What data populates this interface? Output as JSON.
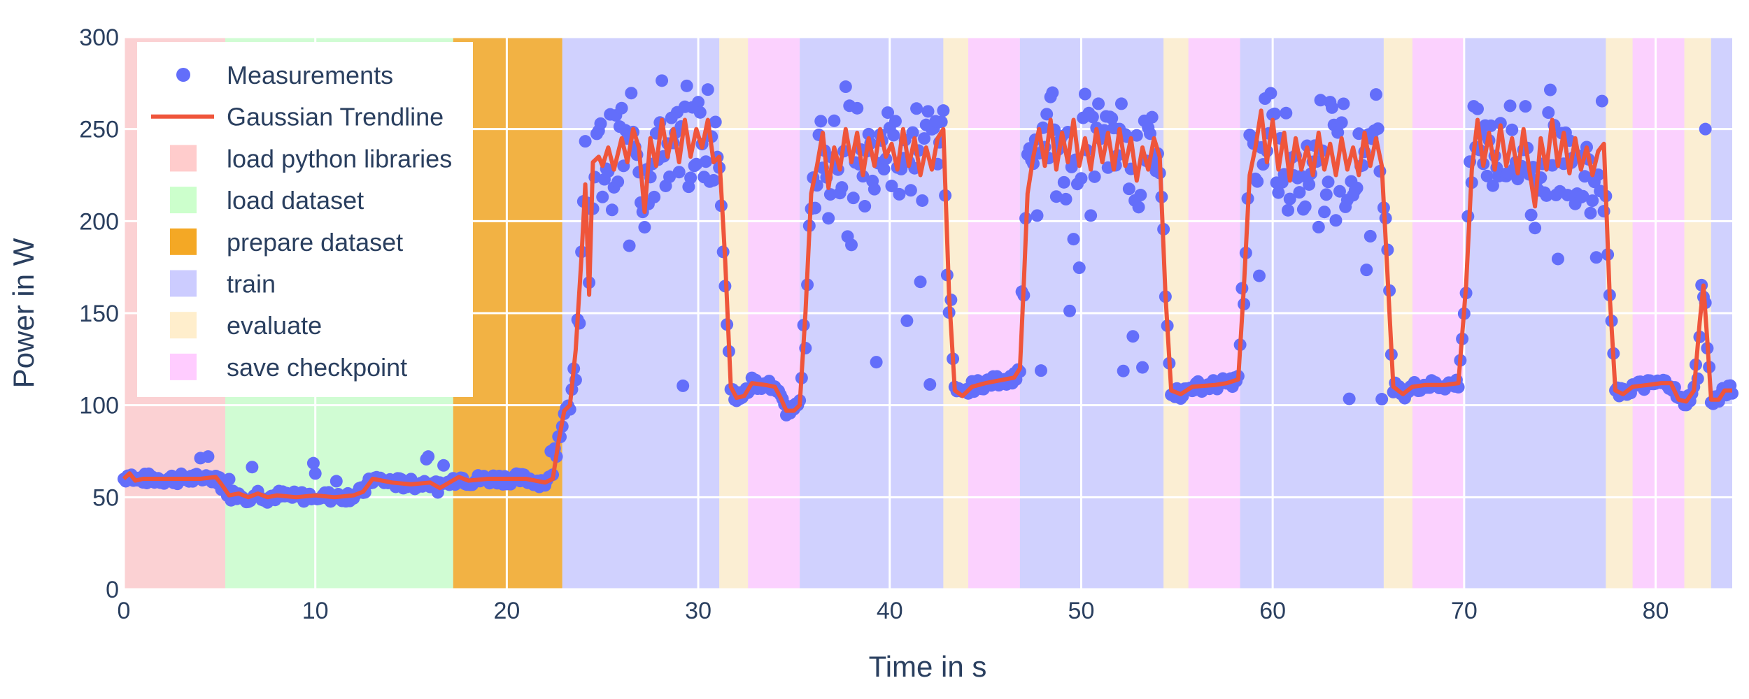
{
  "chart_data": {
    "type": "scatter",
    "title": "",
    "xlabel": "Time in s",
    "ylabel": "Power in W",
    "xlim": [
      0,
      84
    ],
    "ylim": [
      0,
      300
    ],
    "xticks": [
      0,
      10,
      20,
      30,
      40,
      50,
      60,
      70,
      80
    ],
    "yticks": [
      0,
      50,
      100,
      150,
      200,
      250,
      300
    ],
    "grid": true,
    "legend_position": "top-left",
    "series": [
      {
        "name": "Measurements",
        "mode": "markers",
        "color": "#636efa"
      },
      {
        "name": "Gaussian Trendline",
        "mode": "line",
        "color": "#ef553b"
      }
    ],
    "phases": [
      {
        "name": "load python libraries",
        "color": "#ffcccc"
      },
      {
        "name": "load dataset",
        "color": "#ccffcc"
      },
      {
        "name": "prepare dataset",
        "color": "#f4a825"
      },
      {
        "name": "train",
        "color": "#ccccff"
      },
      {
        "name": "evaluate",
        "color": "#ffeecc"
      },
      {
        "name": "save checkpoint",
        "color": "#ffccff"
      }
    ],
    "phase_intervals": [
      {
        "phase": "load python libraries",
        "start": 0,
        "end": 5.3
      },
      {
        "phase": "load dataset",
        "start": 5.3,
        "end": 17.2
      },
      {
        "phase": "prepare dataset",
        "start": 17.2,
        "end": 22.9
      },
      {
        "phase": "train",
        "start": 22.9,
        "end": 31.1
      },
      {
        "phase": "evaluate",
        "start": 31.1,
        "end": 32.6
      },
      {
        "phase": "save checkpoint",
        "start": 32.6,
        "end": 35.3
      },
      {
        "phase": "train",
        "start": 35.3,
        "end": 42.8
      },
      {
        "phase": "evaluate",
        "start": 42.8,
        "end": 44.1
      },
      {
        "phase": "save checkpoint",
        "start": 44.1,
        "end": 46.8
      },
      {
        "phase": "train",
        "start": 46.8,
        "end": 54.3
      },
      {
        "phase": "evaluate",
        "start": 54.3,
        "end": 55.6
      },
      {
        "phase": "save checkpoint",
        "start": 55.6,
        "end": 58.3
      },
      {
        "phase": "train",
        "start": 58.3,
        "end": 65.8
      },
      {
        "phase": "evaluate",
        "start": 65.8,
        "end": 67.3
      },
      {
        "phase": "save checkpoint",
        "start": 67.3,
        "end": 70.0
      },
      {
        "phase": "train",
        "start": 70.0,
        "end": 77.4
      },
      {
        "phase": "evaluate",
        "start": 77.4,
        "end": 78.8
      },
      {
        "phase": "save checkpoint",
        "start": 78.8,
        "end": 81.5
      },
      {
        "phase": "evaluate",
        "start": 81.5,
        "end": 82.9
      },
      {
        "phase": "train",
        "start": 82.9,
        "end": 84
      }
    ],
    "trend_points": [
      [
        0,
        60
      ],
      [
        0.3,
        63
      ],
      [
        0.6,
        59
      ],
      [
        1,
        60
      ],
      [
        2,
        60
      ],
      [
        3,
        60
      ],
      [
        4,
        60
      ],
      [
        4.8,
        61
      ],
      [
        5.1,
        57
      ],
      [
        5.5,
        51
      ],
      [
        6,
        52
      ],
      [
        6.5,
        50
      ],
      [
        7,
        52
      ],
      [
        7.5,
        50
      ],
      [
        8,
        51
      ],
      [
        9,
        50
      ],
      [
        10,
        51
      ],
      [
        11,
        50
      ],
      [
        12,
        51
      ],
      [
        12.5,
        53
      ],
      [
        13,
        60
      ],
      [
        14,
        58
      ],
      [
        15,
        57
      ],
      [
        16,
        58
      ],
      [
        16.5,
        55
      ],
      [
        17,
        58
      ],
      [
        17.5,
        61
      ],
      [
        18,
        59
      ],
      [
        19,
        60
      ],
      [
        20,
        60
      ],
      [
        21,
        60
      ],
      [
        22,
        58
      ],
      [
        22.4,
        60
      ],
      [
        22.7,
        80
      ],
      [
        23.0,
        97
      ],
      [
        23.3,
        100
      ],
      [
        23.6,
        130
      ],
      [
        23.9,
        180
      ],
      [
        24.1,
        220
      ],
      [
        24.3,
        160
      ],
      [
        24.5,
        232
      ],
      [
        24.8,
        235
      ],
      [
        25.0,
        230
      ],
      [
        25.3,
        240
      ],
      [
        25.6,
        228
      ],
      [
        26,
        245
      ],
      [
        26.3,
        232
      ],
      [
        26.6,
        250
      ],
      [
        26.9,
        240
      ],
      [
        27.2,
        205
      ],
      [
        27.5,
        245
      ],
      [
        27.8,
        230
      ],
      [
        28.1,
        255
      ],
      [
        28.4,
        235
      ],
      [
        28.7,
        250
      ],
      [
        29,
        232
      ],
      [
        29.3,
        255
      ],
      [
        29.6,
        235
      ],
      [
        29.9,
        250
      ],
      [
        30.2,
        240
      ],
      [
        30.5,
        255
      ],
      [
        30.8,
        232
      ],
      [
        31.1,
        235
      ],
      [
        31.4,
        180
      ],
      [
        31.7,
        110
      ],
      [
        32,
        104
      ],
      [
        32.4,
        105
      ],
      [
        32.8,
        112
      ],
      [
        33.5,
        111
      ],
      [
        34,
        110
      ],
      [
        34.3,
        104
      ],
      [
        34.6,
        97
      ],
      [
        35.0,
        97
      ],
      [
        35.3,
        100
      ],
      [
        35.6,
        150
      ],
      [
        35.9,
        215
      ],
      [
        36.2,
        230
      ],
      [
        36.5,
        248
      ],
      [
        36.8,
        218
      ],
      [
        37.1,
        240
      ],
      [
        37.4,
        228
      ],
      [
        37.7,
        250
      ],
      [
        38,
        232
      ],
      [
        38.3,
        248
      ],
      [
        38.6,
        225
      ],
      [
        38.9,
        245
      ],
      [
        39.2,
        230
      ],
      [
        39.5,
        250
      ],
      [
        39.8,
        235
      ],
      [
        40.1,
        242
      ],
      [
        40.4,
        228
      ],
      [
        40.7,
        250
      ],
      [
        41,
        230
      ],
      [
        41.3,
        245
      ],
      [
        41.6,
        225
      ],
      [
        41.9,
        240
      ],
      [
        42.2,
        228
      ],
      [
        42.5,
        245
      ],
      [
        42.8,
        250
      ],
      [
        43.1,
        160
      ],
      [
        43.4,
        108
      ],
      [
        43.8,
        105
      ],
      [
        44.3,
        110
      ],
      [
        45,
        112
      ],
      [
        46,
        114
      ],
      [
        46.5,
        115
      ],
      [
        46.8,
        120
      ],
      [
        47.0,
        165
      ],
      [
        47.2,
        215
      ],
      [
        47.5,
        235
      ],
      [
        47.8,
        250
      ],
      [
        48.1,
        230
      ],
      [
        48.4,
        255
      ],
      [
        48.7,
        228
      ],
      [
        49,
        248
      ],
      [
        49.3,
        232
      ],
      [
        49.6,
        255
      ],
      [
        49.9,
        230
      ],
      [
        50.2,
        245
      ],
      [
        50.5,
        228
      ],
      [
        50.8,
        250
      ],
      [
        51.1,
        232
      ],
      [
        51.4,
        248
      ],
      [
        51.7,
        228
      ],
      [
        52,
        250
      ],
      [
        52.3,
        230
      ],
      [
        52.6,
        245
      ],
      [
        52.9,
        222
      ],
      [
        53.2,
        240
      ],
      [
        53.5,
        228
      ],
      [
        53.8,
        245
      ],
      [
        54.1,
        235
      ],
      [
        54.4,
        160
      ],
      [
        54.7,
        108
      ],
      [
        55.2,
        106
      ],
      [
        55.8,
        110
      ],
      [
        57,
        111
      ],
      [
        57.6,
        112
      ],
      [
        58.2,
        114
      ],
      [
        58.5,
        165
      ],
      [
        58.8,
        225
      ],
      [
        59.1,
        240
      ],
      [
        59.4,
        260
      ],
      [
        59.7,
        232
      ],
      [
        60,
        255
      ],
      [
        60.3,
        228
      ],
      [
        60.6,
        248
      ],
      [
        60.9,
        222
      ],
      [
        61.2,
        245
      ],
      [
        61.5,
        228
      ],
      [
        61.8,
        240
      ],
      [
        62.1,
        225
      ],
      [
        62.4,
        248
      ],
      [
        62.7,
        228
      ],
      [
        63,
        242
      ],
      [
        63.3,
        225
      ],
      [
        63.6,
        245
      ],
      [
        63.9,
        228
      ],
      [
        64.2,
        240
      ],
      [
        64.5,
        225
      ],
      [
        64.8,
        248
      ],
      [
        65.1,
        230
      ],
      [
        65.4,
        245
      ],
      [
        65.7,
        230
      ],
      [
        66.0,
        170
      ],
      [
        66.3,
        110
      ],
      [
        66.8,
        106
      ],
      [
        67.3,
        110
      ],
      [
        68,
        111
      ],
      [
        69,
        111
      ],
      [
        69.7,
        112
      ],
      [
        70.1,
        165
      ],
      [
        70.4,
        228
      ],
      [
        70.7,
        255
      ],
      [
        71.0,
        230
      ],
      [
        71.3,
        248
      ],
      [
        71.6,
        228
      ],
      [
        71.9,
        252
      ],
      [
        72.2,
        230
      ],
      [
        72.5,
        245
      ],
      [
        72.8,
        226
      ],
      [
        73.1,
        250
      ],
      [
        73.4,
        228
      ],
      [
        73.7,
        208
      ],
      [
        74.0,
        245
      ],
      [
        74.3,
        228
      ],
      [
        74.6,
        255
      ],
      [
        74.9,
        230
      ],
      [
        75.2,
        248
      ],
      [
        75.5,
        226
      ],
      [
        75.8,
        245
      ],
      [
        76.1,
        228
      ],
      [
        76.4,
        240
      ],
      [
        76.7,
        225
      ],
      [
        77.0,
        238
      ],
      [
        77.3,
        242
      ],
      [
        77.6,
        160
      ],
      [
        77.9,
        108
      ],
      [
        78.3,
        106
      ],
      [
        78.8,
        110
      ],
      [
        79.6,
        111
      ],
      [
        80.3,
        112
      ],
      [
        80.8,
        112
      ],
      [
        81.2,
        103
      ],
      [
        81.6,
        102
      ],
      [
        82.0,
        108
      ],
      [
        82.3,
        145
      ],
      [
        82.5,
        165
      ],
      [
        82.7,
        135
      ],
      [
        82.9,
        103
      ],
      [
        83.3,
        103
      ],
      [
        83.6,
        108
      ],
      [
        84,
        108
      ]
    ]
  }
}
